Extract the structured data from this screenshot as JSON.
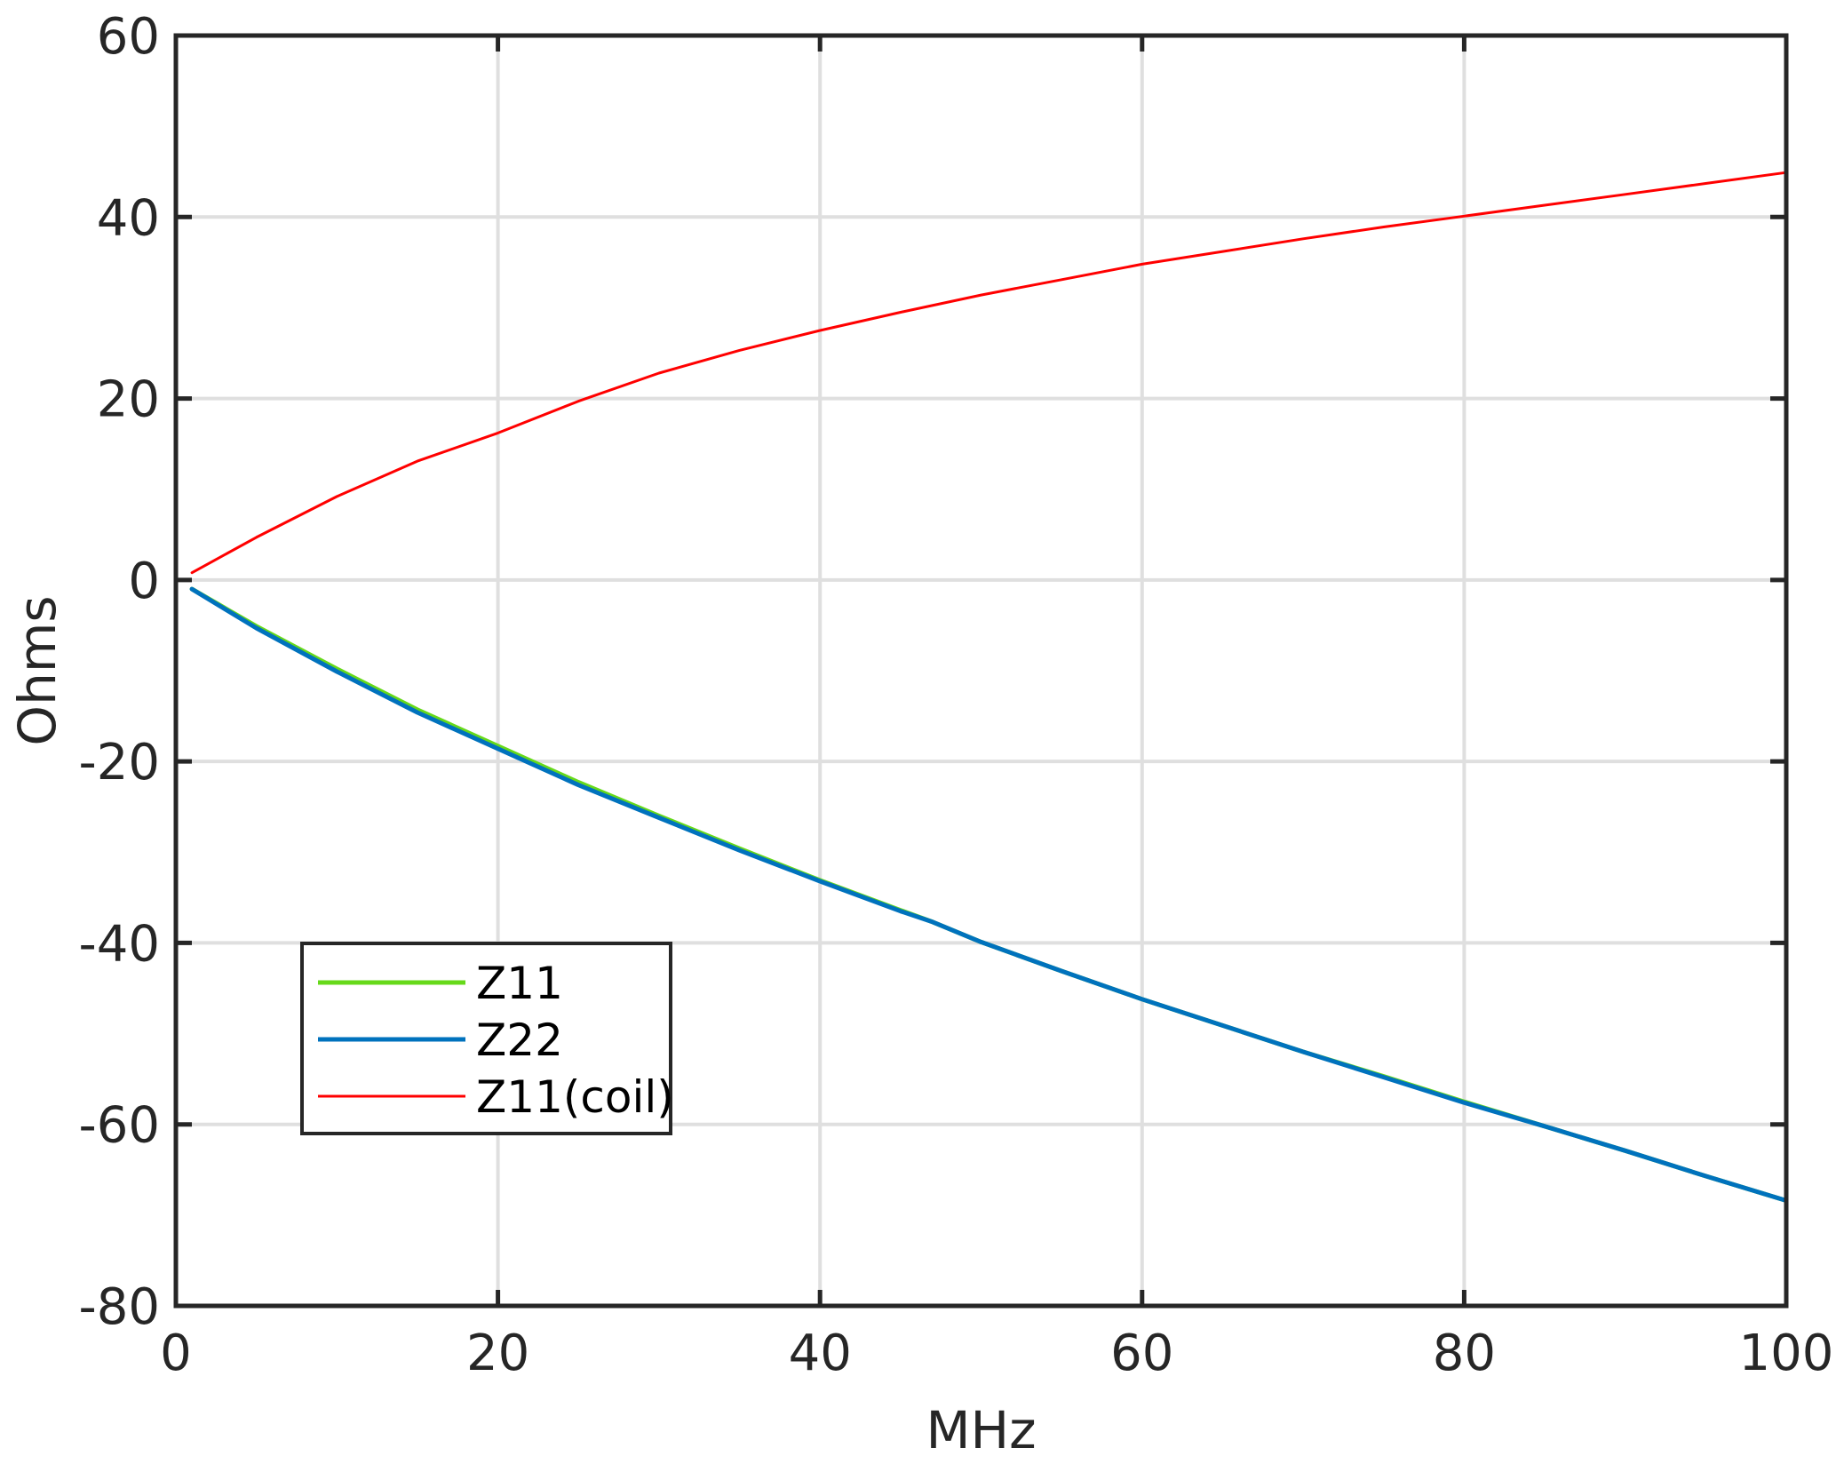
{
  "chart_data": {
    "type": "line",
    "title": "",
    "xlabel": "MHz",
    "ylabel": "Ohms",
    "xlim": [
      0,
      100
    ],
    "ylim": [
      -80,
      60
    ],
    "xticks": [
      0,
      20,
      40,
      60,
      80,
      100
    ],
    "yticks": [
      -80,
      -60,
      -40,
      -20,
      0,
      20,
      40,
      60
    ],
    "xtick_labels": [
      "0",
      "20",
      "40",
      "60",
      "80",
      "100"
    ],
    "ytick_labels": [
      "-80",
      "-60",
      "-40",
      "-20",
      "0",
      "20",
      "40",
      "60"
    ],
    "grid": true,
    "legend_position": "lower-left",
    "series": [
      {
        "name": "Z11",
        "color": "#66d91a",
        "x": [
          1,
          5,
          10,
          15,
          20,
          25,
          30,
          35,
          40,
          45,
          47,
          50,
          55,
          60,
          65,
          70,
          75,
          80,
          85,
          90,
          95,
          100
        ],
        "y": [
          -1.0,
          -5.1,
          -9.8,
          -14.3,
          -18.3,
          -22.3,
          -26.0,
          -29.6,
          -33.1,
          -36.4,
          -37.7,
          -39.9,
          -43.1,
          -46.2,
          -49.1,
          -52.0,
          -54.7,
          -57.5,
          -60.2,
          -62.9,
          -65.7,
          -68.4
        ]
      },
      {
        "name": "Z22",
        "color": "#0072bd",
        "x": [
          1,
          5,
          10,
          15,
          20,
          25,
          30,
          35,
          40,
          45,
          47,
          50,
          55,
          60,
          65,
          70,
          75,
          80,
          85,
          90,
          95,
          100
        ],
        "y": [
          -1.0,
          -5.3,
          -10.1,
          -14.6,
          -18.6,
          -22.6,
          -26.2,
          -29.8,
          -33.2,
          -36.5,
          -37.7,
          -39.9,
          -43.1,
          -46.2,
          -49.1,
          -52.0,
          -54.8,
          -57.6,
          -60.2,
          -62.9,
          -65.7,
          -68.4
        ]
      },
      {
        "name": "Z11(coil)",
        "color": "#ff0000",
        "x": [
          1,
          5,
          10,
          15,
          20,
          25,
          30,
          35,
          40,
          45,
          50,
          55,
          60,
          65,
          70,
          75,
          80,
          85,
          90,
          95,
          100
        ],
        "y": [
          0.8,
          4.7,
          9.2,
          13.1,
          16.2,
          19.7,
          22.8,
          25.3,
          27.5,
          29.5,
          31.4,
          33.1,
          34.8,
          36.2,
          37.6,
          38.9,
          40.1,
          41.3,
          42.5,
          43.7,
          44.9
        ]
      }
    ]
  }
}
